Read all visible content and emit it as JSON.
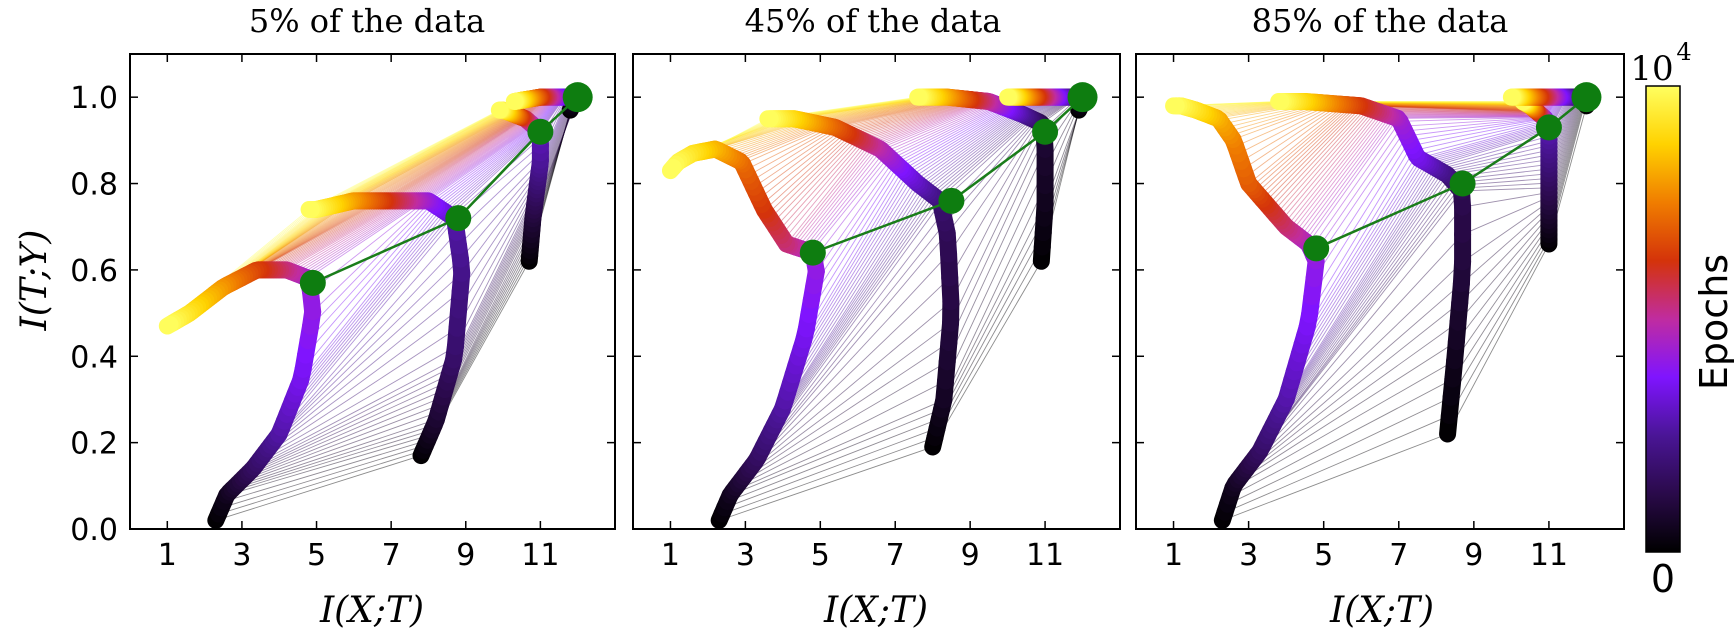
{
  "colors": {
    "colormap": [
      "#000000",
      "#2a0a4a",
      "#4a1596",
      "#7f14ff",
      "#c02ca0",
      "#d4330a",
      "#f07d00",
      "#ffd200",
      "#ffff60"
    ],
    "layer_line": "#1a7d1a",
    "layer_marker": "#0e7d10",
    "connector": "#555555"
  },
  "colorbar": {
    "label": "Epochs",
    "max_base": "10",
    "max_exp": "4",
    "min_label": "0"
  },
  "chart_data": [
    {
      "type": "line",
      "title": "5% of the data",
      "xlabel": "I(X;T)",
      "ylabel": "I(T;Y)",
      "xlim": [
        0,
        13
      ],
      "ylim": [
        0.0,
        1.1
      ],
      "xticks": [
        "1",
        "3",
        "5",
        "7",
        "9",
        "11"
      ],
      "yticks": [
        "0.0",
        "0.2",
        "0.4",
        "0.6",
        "0.8",
        "1.0"
      ],
      "grid": false,
      "series": [
        {
          "values": [
            [
              2.3,
              0.02
            ],
            [
              2.6,
              0.08
            ],
            [
              3.3,
              0.14
            ],
            [
              4.0,
              0.22
            ],
            [
              4.6,
              0.35
            ],
            [
              4.9,
              0.5
            ],
            [
              4.8,
              0.58
            ],
            [
              4.2,
              0.6
            ],
            [
              3.4,
              0.6
            ],
            [
              2.5,
              0.56
            ],
            [
              1.6,
              0.5
            ],
            [
              1.0,
              0.47
            ]
          ]
        },
        {
          "values": [
            [
              7.8,
              0.17
            ],
            [
              8.2,
              0.25
            ],
            [
              8.7,
              0.4
            ],
            [
              8.9,
              0.6
            ],
            [
              8.7,
              0.72
            ],
            [
              8.0,
              0.76
            ],
            [
              6.9,
              0.76
            ],
            [
              6.0,
              0.76
            ],
            [
              5.0,
              0.74
            ],
            [
              4.8,
              0.74
            ]
          ]
        },
        {
          "values": [
            [
              10.7,
              0.62
            ],
            [
              10.8,
              0.72
            ],
            [
              11.0,
              0.85
            ],
            [
              11.0,
              0.92
            ],
            [
              10.6,
              0.95
            ],
            [
              10.0,
              0.97
            ],
            [
              9.9,
              0.97
            ]
          ]
        },
        {
          "values": [
            [
              11.8,
              0.97
            ],
            [
              11.9,
              0.99
            ],
            [
              12.0,
              1.0
            ],
            [
              11.6,
              1.0
            ],
            [
              11.0,
              1.0
            ],
            [
              10.3,
              0.99
            ]
          ]
        }
      ],
      "layer_path": [
        [
          4.9,
          0.57
        ],
        [
          8.8,
          0.72
        ],
        [
          11.0,
          0.92
        ],
        [
          12.0,
          1.0
        ]
      ]
    },
    {
      "type": "line",
      "title": "45% of the data",
      "xlabel": "I(X;T)",
      "ylabel": "",
      "xlim": [
        0,
        13
      ],
      "ylim": [
        0.0,
        1.1
      ],
      "xticks": [
        "1",
        "3",
        "5",
        "7",
        "9",
        "11"
      ],
      "yticks": [],
      "grid": false,
      "series": [
        {
          "values": [
            [
              2.3,
              0.02
            ],
            [
              2.6,
              0.08
            ],
            [
              3.3,
              0.16
            ],
            [
              4.0,
              0.28
            ],
            [
              4.6,
              0.45
            ],
            [
              4.9,
              0.6
            ],
            [
              4.8,
              0.64
            ],
            [
              4.1,
              0.66
            ],
            [
              3.5,
              0.74
            ],
            [
              2.9,
              0.85
            ],
            [
              2.2,
              0.88
            ],
            [
              1.6,
              0.87
            ],
            [
              1.2,
              0.85
            ],
            [
              1.0,
              0.83
            ]
          ]
        },
        {
          "values": [
            [
              8.0,
              0.19
            ],
            [
              8.3,
              0.3
            ],
            [
              8.5,
              0.5
            ],
            [
              8.4,
              0.68
            ],
            [
              8.2,
              0.76
            ],
            [
              7.6,
              0.8
            ],
            [
              6.6,
              0.88
            ],
            [
              5.4,
              0.93
            ],
            [
              4.3,
              0.95
            ],
            [
              3.6,
              0.95
            ]
          ]
        },
        {
          "values": [
            [
              10.9,
              0.62
            ],
            [
              11.0,
              0.75
            ],
            [
              11.0,
              0.9
            ],
            [
              10.9,
              0.94
            ],
            [
              10.4,
              0.96
            ],
            [
              9.5,
              0.99
            ],
            [
              8.4,
              1.0
            ],
            [
              7.6,
              1.0
            ]
          ]
        },
        {
          "values": [
            [
              11.9,
              0.97
            ],
            [
              12.0,
              0.99
            ],
            [
              12.0,
              1.0
            ],
            [
              11.5,
              1.0
            ],
            [
              10.8,
              1.0
            ],
            [
              10.0,
              1.0
            ]
          ]
        }
      ],
      "layer_path": [
        [
          4.8,
          0.64
        ],
        [
          8.5,
          0.76
        ],
        [
          11.0,
          0.92
        ],
        [
          12.0,
          1.0
        ]
      ]
    },
    {
      "type": "line",
      "title": "85% of the data",
      "xlabel": "I(X;T)",
      "ylabel": "",
      "xlim": [
        0,
        13
      ],
      "ylim": [
        0.0,
        1.1
      ],
      "xticks": [
        "1",
        "3",
        "5",
        "7",
        "9",
        "11"
      ],
      "yticks": [],
      "grid": false,
      "series": [
        {
          "values": [
            [
              2.3,
              0.02
            ],
            [
              2.6,
              0.1
            ],
            [
              3.3,
              0.18
            ],
            [
              4.0,
              0.3
            ],
            [
              4.6,
              0.48
            ],
            [
              4.8,
              0.62
            ],
            [
              4.6,
              0.66
            ],
            [
              4.0,
              0.7
            ],
            [
              3.0,
              0.8
            ],
            [
              2.6,
              0.9
            ],
            [
              2.2,
              0.95
            ],
            [
              1.6,
              0.97
            ],
            [
              1.2,
              0.98
            ],
            [
              1.0,
              0.98
            ]
          ]
        },
        {
          "values": [
            [
              8.3,
              0.22
            ],
            [
              8.5,
              0.4
            ],
            [
              8.7,
              0.6
            ],
            [
              8.7,
              0.78
            ],
            [
              8.3,
              0.82
            ],
            [
              7.5,
              0.86
            ],
            [
              7.0,
              0.95
            ],
            [
              6.0,
              0.98
            ],
            [
              4.5,
              0.99
            ],
            [
              3.8,
              0.99
            ]
          ]
        },
        {
          "values": [
            [
              11.0,
              0.66
            ],
            [
              11.0,
              0.8
            ],
            [
              11.0,
              0.92
            ],
            [
              10.9,
              0.95
            ],
            [
              10.5,
              0.98
            ],
            [
              10.3,
              0.99
            ]
          ]
        },
        {
          "values": [
            [
              12.0,
              0.98
            ],
            [
              12.0,
              1.0
            ],
            [
              11.5,
              1.0
            ],
            [
              10.5,
              1.0
            ],
            [
              10.0,
              1.0
            ]
          ]
        }
      ],
      "layer_path": [
        [
          4.8,
          0.65
        ],
        [
          8.7,
          0.8
        ],
        [
          11.0,
          0.93
        ],
        [
          12.0,
          1.0
        ]
      ]
    }
  ]
}
